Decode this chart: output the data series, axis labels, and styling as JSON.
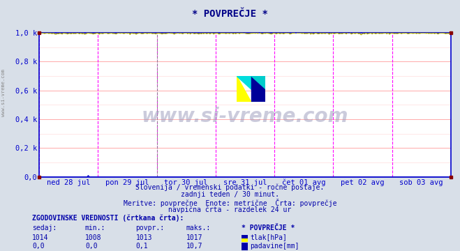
{
  "title": "* POVPREČJE *",
  "background_color": "#d8dfe8",
  "plot_bg_color": "#ffffff",
  "grid_color_major": "#ffaaaa",
  "grid_color_minor": "#ffdddd",
  "x_labels": [
    "ned 28 jul",
    "pon 29 jul",
    "tor 30 jul",
    "sre 31 jul",
    "čet 01 avg",
    "pet 02 avg",
    "sob 03 avg"
  ],
  "y_labels": [
    "0,0",
    "0,2 k",
    "0,4 k",
    "0,6 k",
    "0,8 k",
    "1,0 k"
  ],
  "y_ticks": [
    0.0,
    0.2,
    0.4,
    0.6,
    0.8,
    1.0
  ],
  "ylim": [
    0.0,
    1.0
  ],
  "subtitle_lines": [
    "Slovenija / vremenski podatki - ročne postaje.",
    "zadnji teden / 30 minut.",
    "Meritve: povprečne  Enote: metrične  Črta: povprečje",
    "navpična črta - razdelek 24 ur"
  ],
  "table_header": "ZGODOVINSKE VREDNOSTI (črtkana črta):",
  "table_cols": [
    "sedaj:",
    "min.:",
    "povpr.:",
    "maks.:",
    "* POVPREČJE *"
  ],
  "table_row1": [
    "1014",
    "1008",
    "1013",
    "1017"
  ],
  "table_row2": [
    "0,0",
    "0,0",
    "0,1",
    "10,7"
  ],
  "legend_label1": "tlak[hPa]",
  "legend_label2": "padavine[mm]",
  "legend_color1_top": "#ffff00",
  "legend_color1_bot": "#0000cc",
  "legend_color2": "#0000cc",
  "watermark": "www.si-vreme.com",
  "axis_color": "#0000cc",
  "title_color": "#000088",
  "text_color_dark": "#0000aa",
  "text_color_label": "#2255aa",
  "vline_color": "#ff00ff",
  "dashed_vline_color": "#888888",
  "corner_color": "#880000",
  "n_points": 336,
  "n_days": 7
}
